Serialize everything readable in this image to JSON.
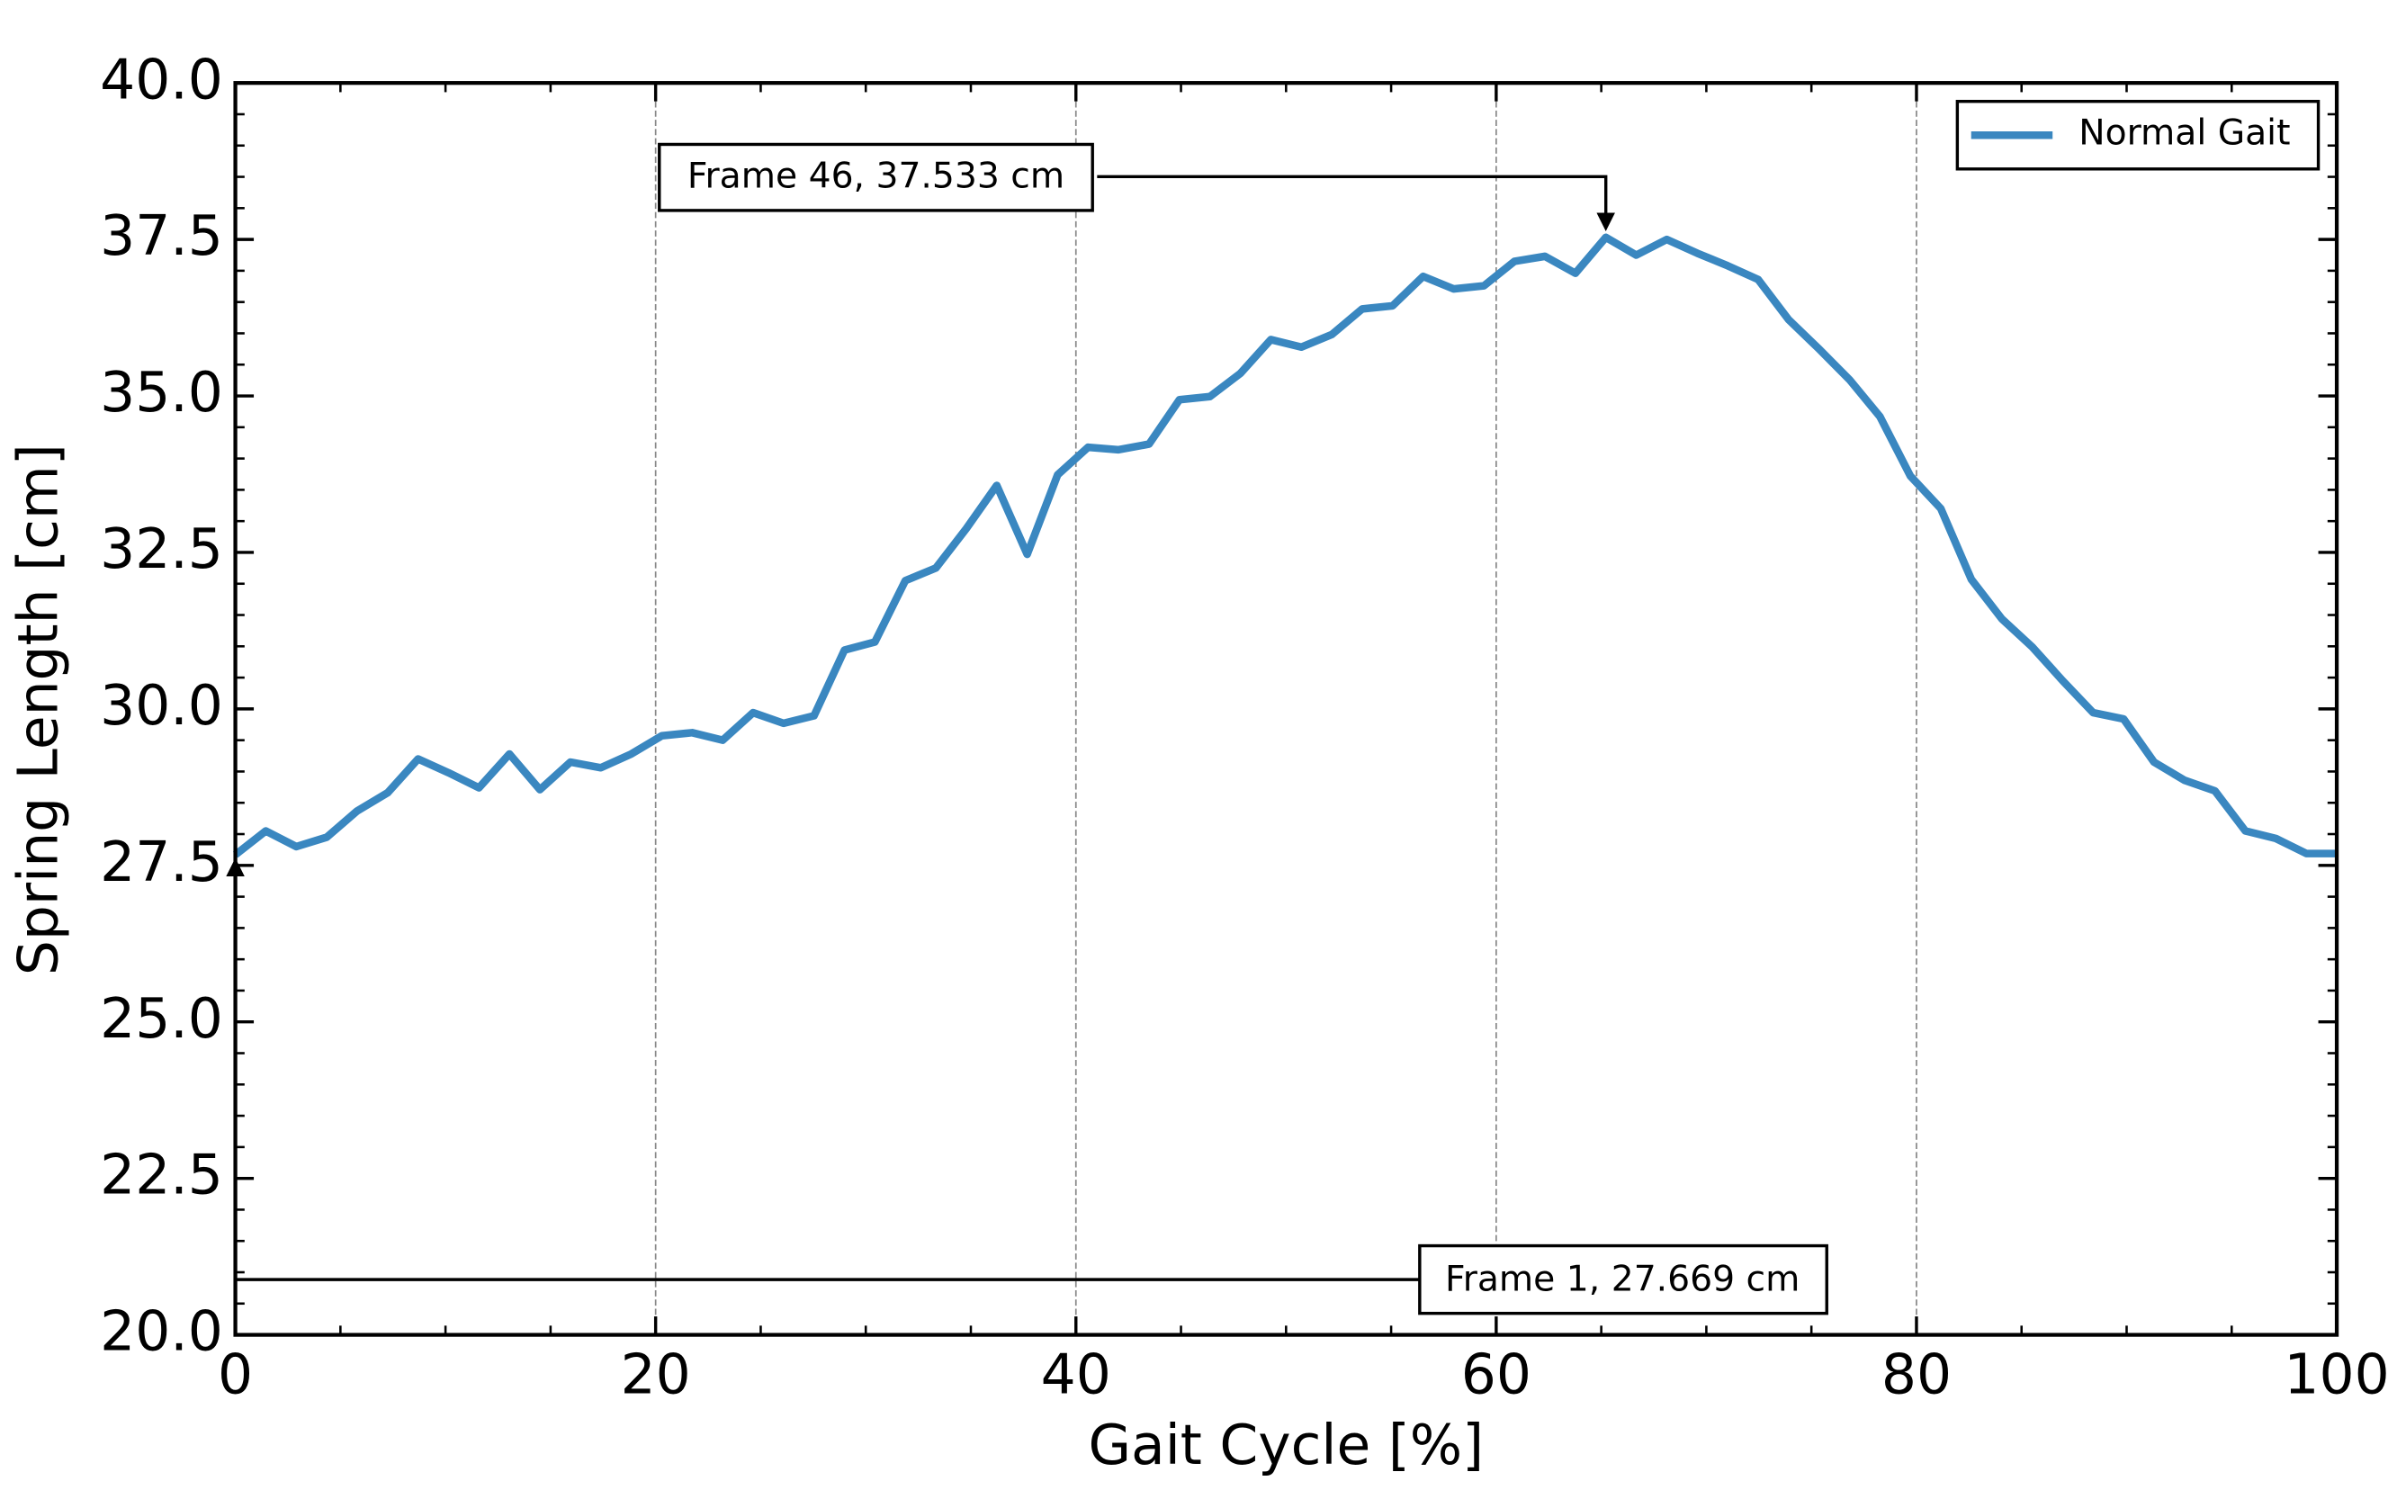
{
  "chart_data": {
    "type": "line",
    "xlabel": "Gait Cycle [%]",
    "ylabel": "Spring Length [cm]",
    "x": [
      0,
      1.449,
      2.899,
      4.348,
      5.797,
      7.246,
      8.696,
      10.145,
      11.594,
      13.043,
      14.493,
      15.942,
      17.391,
      18.841,
      20.29,
      21.739,
      23.188,
      24.638,
      26.087,
      27.536,
      28.986,
      30.435,
      31.884,
      33.333,
      34.783,
      36.232,
      37.681,
      39.13,
      40.58,
      42.029,
      43.478,
      44.928,
      46.377,
      47.826,
      49.275,
      50.725,
      52.174,
      53.623,
      55.072,
      56.522,
      57.971,
      59.42,
      60.87,
      62.319,
      63.768,
      65.217,
      66.667,
      68.116,
      69.565,
      71.014,
      72.464,
      73.913,
      75.362,
      76.812,
      78.261,
      79.71,
      81.159,
      82.609,
      84.058,
      85.507,
      86.957,
      88.406,
      89.855,
      91.304,
      92.754,
      94.203,
      95.652,
      97.101,
      98.551,
      100
    ],
    "series": [
      {
        "name": "Normal Gait",
        "color": "#3a87c0",
        "values": [
          27.669,
          28.05,
          27.8,
          27.95,
          28.37,
          28.66,
          29.2,
          28.98,
          28.74,
          29.28,
          28.71,
          29.15,
          29.06,
          29.28,
          29.57,
          29.62,
          29.5,
          29.94,
          29.77,
          29.89,
          30.94,
          31.07,
          32.05,
          32.25,
          32.88,
          33.57,
          32.47,
          33.74,
          34.18,
          34.14,
          34.23,
          34.94,
          34.99,
          35.36,
          35.9,
          35.78,
          35.98,
          36.39,
          36.44,
          36.91,
          36.71,
          36.76,
          37.15,
          37.23,
          36.96,
          37.533,
          37.25,
          37.5,
          37.28,
          37.08,
          36.86,
          36.22,
          35.75,
          35.26,
          34.67,
          33.72,
          33.2,
          32.07,
          31.44,
          30.99,
          30.45,
          29.94,
          29.84,
          29.15,
          28.86,
          28.69,
          28.05,
          27.93,
          27.69,
          27.69
        ]
      }
    ],
    "xlim": [
      0,
      100
    ],
    "xticks": [
      0,
      20,
      40,
      60,
      80,
      100
    ],
    "ylim": [
      20,
      40
    ],
    "yticks": [
      {
        "value": 20,
        "label": "20.0"
      },
      22.5,
      {
        "value": 25,
        "label": "25.0"
      },
      27.5,
      {
        "value": 30,
        "label": "30.0"
      },
      32.5,
      {
        "value": 35,
        "label": "35.0"
      },
      37.5,
      {
        "value": 40,
        "label": "40.0"
      }
    ],
    "grid": "x",
    "legend": "upper right",
    "annotations": [
      {
        "text": "Frame 46, 37.533 cm"
      },
      {
        "text": "Frame 1, 27.669 cm"
      }
    ]
  }
}
